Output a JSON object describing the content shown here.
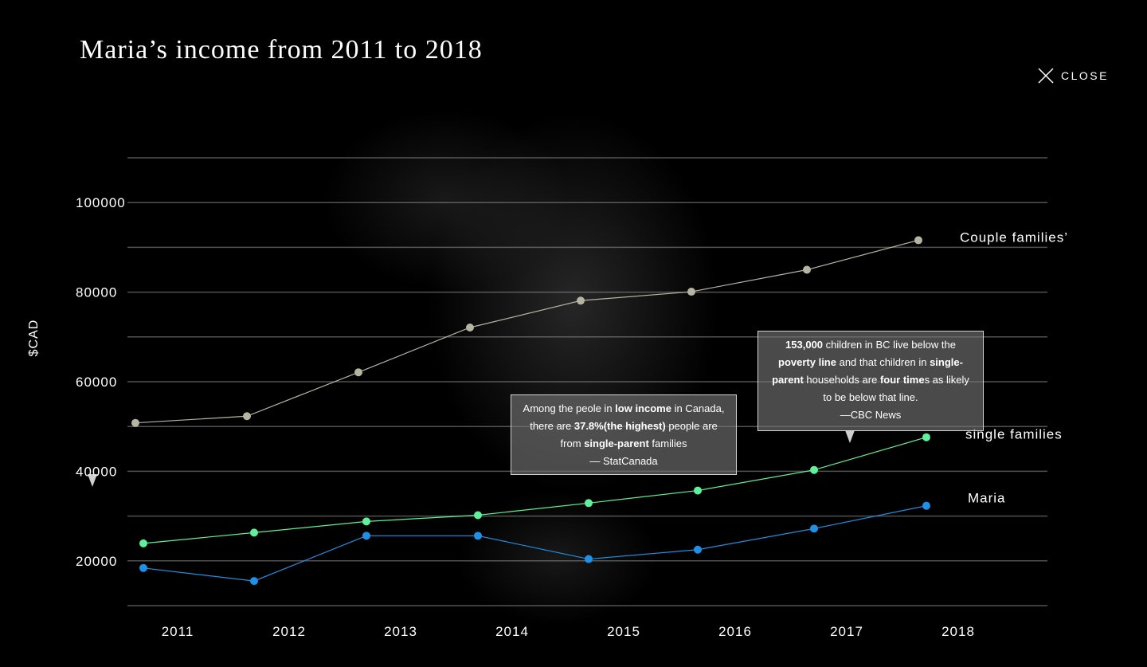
{
  "page": {
    "title": "Maria’s income from 2011 to 2018",
    "close_label": "CLOSE"
  },
  "callouts": [
    {
      "parts": [
        {
          "t": "Among the peole in ",
          "b": false
        },
        {
          "t": "low income",
          "b": true
        },
        {
          "t": " in Canada, there are ",
          "b": false
        },
        {
          "t": "37.8%(the highest)",
          "b": true
        },
        {
          "t": " people are from ",
          "b": false
        },
        {
          "t": "single-parent",
          "b": true
        },
        {
          "t": " families",
          "b": false
        },
        {
          "br": true
        },
        {
          "t": "— StatCanada",
          "b": false
        }
      ]
    },
    {
      "parts": [
        {
          "t": "153,000",
          "b": true
        },
        {
          "t": " children in BC live below the ",
          "b": false
        },
        {
          "t": "poverty line",
          "b": true
        },
        {
          "t": " and that children in ",
          "b": false
        },
        {
          "t": "single-parent",
          "b": true
        },
        {
          "t": " households are ",
          "b": false
        },
        {
          "t": "four time",
          "b": true
        },
        {
          "t": "s as likely to be below that line.",
          "b": false
        },
        {
          "br": true
        },
        {
          "t": "—CBC News",
          "b": false
        }
      ]
    }
  ],
  "chart_data": {
    "type": "line",
    "title": "Maria’s income from 2011 to 2018",
    "xlabel": "",
    "ylabel": "$CAD",
    "categories": [
      "2011",
      "2012",
      "2013",
      "2014",
      "2015",
      "2016",
      "2017",
      "2018"
    ],
    "yticks": [
      20000,
      40000,
      60000,
      80000,
      100000
    ],
    "ylim": [
      10000,
      110000
    ],
    "grid": true,
    "series": [
      {
        "name": "Couple families’",
        "color": "#b5b5a2",
        "values": [
          50800,
          52300,
          62100,
          72100,
          78100,
          80100,
          85000,
          91600
        ]
      },
      {
        "name": "single families",
        "color": "#5ef09a",
        "values": [
          23900,
          26300,
          28800,
          30200,
          32900,
          35700,
          40300,
          47600
        ]
      },
      {
        "name": "Maria",
        "color": "#1e90e6",
        "values": [
          18400,
          15500,
          25600,
          25600,
          20400,
          22500,
          27200,
          32300
        ]
      }
    ]
  }
}
